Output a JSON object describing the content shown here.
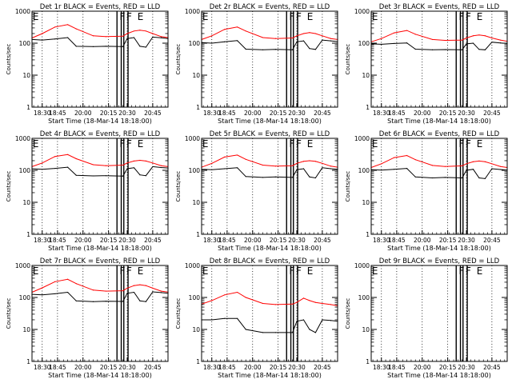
{
  "page": {
    "background": "#ffffff"
  },
  "colors": {
    "events": "#000000",
    "lld": "#ff0000",
    "axes": "#000000"
  },
  "chart_data": [
    {
      "type": "line",
      "title": "Det 1r BLACK = Events, RED = LLD",
      "xlabel": "Start Time (18-Mar-14 18:18:00)",
      "ylabel": "Counts/sec",
      "yscale": "log",
      "ylim": [
        1,
        1000
      ],
      "xlim": [
        "18:18",
        "20:58"
      ],
      "x_ticks": [
        "18:30",
        "18:45",
        "20:00",
        "20:15",
        "20:30",
        "20:45"
      ],
      "y_ticks": [
        "1",
        "10",
        "100",
        "1000"
      ],
      "grid": "vertical dotted",
      "flag_labels": [
        "E",
        "F",
        "F",
        "E"
      ],
      "x": [
        "18:18",
        "18:30",
        "18:45",
        "19:00",
        "19:10",
        "19:30",
        "19:45",
        "20:05",
        "20:10",
        "20:18",
        "20:25",
        "20:32",
        "20:40",
        "20:50",
        "20:58"
      ],
      "series": [
        {
          "name": "Events",
          "color": "#000000",
          "values": [
            130,
            125,
            135,
            150,
            80,
            78,
            80,
            78,
            140,
            150,
            80,
            75,
            155,
            148,
            140
          ]
        },
        {
          "name": "LLD",
          "color": "#ff0000",
          "values": [
            145,
            200,
            320,
            380,
            280,
            170,
            160,
            165,
            200,
            240,
            255,
            240,
            200,
            160,
            150
          ]
        }
      ]
    },
    {
      "type": "line",
      "title": "Det 2r BLACK = Events, RED = LLD",
      "xlabel": "Start Time (18-Mar-14 18:18:00)",
      "ylabel": "Counts/sec",
      "yscale": "log",
      "ylim": [
        1,
        1000
      ],
      "xlim": [
        "18:18",
        "20:58"
      ],
      "x_ticks": [
        "18:30",
        "18:45",
        "20:00",
        "20:15",
        "20:30",
        "20:45"
      ],
      "y_ticks": [
        "1",
        "10",
        "100",
        "1000"
      ],
      "grid": "vertical dotted",
      "flag_labels": [
        "E",
        "F",
        "F",
        "E"
      ],
      "x": [
        "18:18",
        "18:30",
        "18:45",
        "19:00",
        "19:10",
        "19:30",
        "19:45",
        "20:05",
        "20:10",
        "20:18",
        "20:25",
        "20:32",
        "20:40",
        "20:50",
        "20:58"
      ],
      "series": [
        {
          "name": "Events",
          "color": "#000000",
          "values": [
            105,
            100,
            110,
            120,
            65,
            62,
            64,
            62,
            110,
            118,
            68,
            64,
            125,
            118,
            112
          ]
        },
        {
          "name": "LLD",
          "color": "#ff0000",
          "values": [
            130,
            170,
            270,
            320,
            240,
            150,
            140,
            145,
            170,
            200,
            215,
            200,
            170,
            140,
            130
          ]
        }
      ]
    },
    {
      "type": "line",
      "title": "Det 3r BLACK = Events, RED = LLD",
      "xlabel": "Start Time (18-Mar-14 18:18:00)",
      "ylabel": "Counts/sec",
      "yscale": "log",
      "ylim": [
        1,
        1000
      ],
      "xlim": [
        "18:18",
        "20:58"
      ],
      "x_ticks": [
        "18:30",
        "18:45",
        "20:00",
        "20:15",
        "20:30",
        "20:45"
      ],
      "y_ticks": [
        "1",
        "10",
        "100",
        "1000"
      ],
      "grid": "vertical dotted",
      "flag_labels": [
        "E",
        "F",
        "F",
        "E"
      ],
      "x": [
        "18:18",
        "18:30",
        "18:45",
        "19:00",
        "19:10",
        "19:30",
        "19:45",
        "20:05",
        "20:10",
        "20:18",
        "20:25",
        "20:32",
        "20:40",
        "20:50",
        "20:58"
      ],
      "series": [
        {
          "name": "Events",
          "color": "#000000",
          "values": [
            95,
            92,
            98,
            102,
            65,
            62,
            63,
            62,
            95,
            100,
            64,
            62,
            108,
            102,
            98
          ]
        },
        {
          "name": "LLD",
          "color": "#ff0000",
          "values": [
            110,
            140,
            210,
            250,
            190,
            130,
            122,
            125,
            145,
            170,
            180,
            170,
            145,
            125,
            115
          ]
        }
      ]
    },
    {
      "type": "line",
      "title": "Det 4r BLACK = Events, RED = LLD",
      "xlabel": "Start Time (18-Mar-14 18:18:00)",
      "ylabel": "Counts/sec",
      "yscale": "log",
      "ylim": [
        1,
        1000
      ],
      "xlim": [
        "18:18",
        "20:58"
      ],
      "x_ticks": [
        "18:30",
        "18:45",
        "20:00",
        "20:15",
        "20:30",
        "20:45"
      ],
      "y_ticks": [
        "1",
        "10",
        "100",
        "1000"
      ],
      "grid": "vertical dotted",
      "flag_labels": [
        "E",
        "F",
        "F",
        "E"
      ],
      "x": [
        "18:18",
        "18:30",
        "18:45",
        "19:00",
        "19:10",
        "19:30",
        "19:45",
        "20:05",
        "20:10",
        "20:18",
        "20:25",
        "20:32",
        "20:40",
        "20:50",
        "20:58"
      ],
      "series": [
        {
          "name": "Events",
          "color": "#000000",
          "values": [
            112,
            108,
            115,
            125,
            70,
            67,
            68,
            66,
            112,
            120,
            72,
            68,
            130,
            122,
            118
          ]
        },
        {
          "name": "LLD",
          "color": "#ff0000",
          "values": [
            130,
            170,
            270,
            310,
            230,
            150,
            140,
            145,
            170,
            195,
            205,
            195,
            170,
            140,
            130
          ]
        }
      ]
    },
    {
      "type": "line",
      "title": "Det 5r BLACK = Events, RED = LLD",
      "xlabel": "Start Time (18-Mar-14 18:18:00)",
      "ylabel": "Counts/sec",
      "yscale": "log",
      "ylim": [
        1,
        1000
      ],
      "xlim": [
        "18:18",
        "20:58"
      ],
      "x_ticks": [
        "18:30",
        "18:45",
        "20:00",
        "20:15",
        "20:30",
        "20:45"
      ],
      "y_ticks": [
        "1",
        "10",
        "100",
        "1000"
      ],
      "grid": "vertical dotted",
      "flag_labels": [
        "E",
        "F",
        "F",
        "E"
      ],
      "x": [
        "18:18",
        "18:30",
        "18:45",
        "19:00",
        "19:10",
        "19:30",
        "19:45",
        "20:05",
        "20:10",
        "20:18",
        "20:25",
        "20:32",
        "20:40",
        "20:50",
        "20:58"
      ],
      "series": [
        {
          "name": "Events",
          "color": "#000000",
          "values": [
            108,
            105,
            112,
            120,
            64,
            60,
            62,
            60,
            105,
            112,
            62,
            58,
            120,
            112,
            108
          ]
        },
        {
          "name": "LLD",
          "color": "#ff0000",
          "values": [
            125,
            165,
            260,
            300,
            220,
            145,
            135,
            140,
            165,
            190,
            200,
            190,
            165,
            135,
            125
          ]
        }
      ]
    },
    {
      "type": "line",
      "title": "Det 6r BLACK = Events, RED = LLD",
      "xlabel": "Start Time (18-Mar-14 18:18:00)",
      "ylabel": "Counts/sec",
      "yscale": "log",
      "ylim": [
        1,
        1000
      ],
      "xlim": [
        "18:18",
        "20:58"
      ],
      "x_ticks": [
        "18:30",
        "18:45",
        "20:00",
        "20:15",
        "20:30",
        "20:45"
      ],
      "y_ticks": [
        "1",
        "10",
        "100",
        "1000"
      ],
      "grid": "vertical dotted",
      "flag_labels": [
        "E",
        "F",
        "F",
        "E"
      ],
      "x": [
        "18:18",
        "18:30",
        "18:45",
        "19:00",
        "19:10",
        "19:30",
        "19:45",
        "20:05",
        "20:10",
        "20:18",
        "20:25",
        "20:32",
        "20:40",
        "20:50",
        "20:58"
      ],
      "series": [
        {
          "name": "Events",
          "color": "#000000",
          "values": [
            105,
            102,
            108,
            115,
            62,
            58,
            60,
            58,
            100,
            108,
            58,
            55,
            112,
            106,
            102
          ]
        },
        {
          "name": "LLD",
          "color": "#ff0000",
          "values": [
            122,
            160,
            250,
            290,
            215,
            142,
            132,
            138,
            160,
            185,
            195,
            185,
            160,
            132,
            122
          ]
        }
      ]
    },
    {
      "type": "line",
      "title": "Det 7r BLACK = Events, RED = LLD",
      "xlabel": "Start Time (18-Mar-14 18:18:00)",
      "ylabel": "Counts/sec",
      "yscale": "log",
      "ylim": [
        1,
        1000
      ],
      "xlim": [
        "18:18",
        "20:58"
      ],
      "x_ticks": [
        "18:30",
        "18:45",
        "20:00",
        "20:15",
        "20:30",
        "20:45"
      ],
      "y_ticks": [
        "1",
        "10",
        "100",
        "1000"
      ],
      "grid": "vertical dotted",
      "flag_labels": [
        "E",
        "F",
        "F",
        "E"
      ],
      "x": [
        "18:18",
        "18:30",
        "18:45",
        "19:00",
        "19:10",
        "19:30",
        "19:45",
        "20:05",
        "20:10",
        "20:18",
        "20:25",
        "20:32",
        "20:40",
        "20:50",
        "20:58"
      ],
      "series": [
        {
          "name": "Events",
          "color": "#000000",
          "values": [
            125,
            120,
            130,
            145,
            78,
            74,
            76,
            75,
            135,
            145,
            78,
            74,
            150,
            142,
            135
          ]
        },
        {
          "name": "LLD",
          "color": "#ff0000",
          "values": [
            145,
            200,
            310,
            370,
            270,
            170,
            158,
            162,
            195,
            235,
            250,
            235,
            195,
            158,
            148
          ]
        }
      ]
    },
    {
      "type": "line",
      "title": "Det 8r BLACK = Events, RED = LLD",
      "xlabel": "Start Time (18-Mar-14 18:18:00)",
      "ylabel": "Counts/sec",
      "yscale": "log",
      "ylim": [
        1,
        1000
      ],
      "xlim": [
        "18:18",
        "20:58"
      ],
      "x_ticks": [
        "18:30",
        "18:45",
        "20:00",
        "20:15",
        "20:30",
        "20:45"
      ],
      "y_ticks": [
        "1",
        "10",
        "100",
        "1000"
      ],
      "grid": "vertical dotted",
      "flag_labels": [
        "E",
        "F",
        "F",
        "E"
      ],
      "x": [
        "18:18",
        "18:30",
        "18:45",
        "19:00",
        "19:10",
        "19:30",
        "19:45",
        "20:05",
        "20:10",
        "20:18",
        "20:25",
        "20:32",
        "20:40",
        "20:50",
        "20:58"
      ],
      "series": [
        {
          "name": "Events",
          "color": "#000000",
          "values": [
            20,
            20,
            22,
            22,
            10,
            8,
            8,
            8,
            18,
            20,
            10,
            8,
            20,
            19,
            18
          ]
        },
        {
          "name": "LLD",
          "color": "#ff0000",
          "values": [
            62,
            80,
            120,
            145,
            100,
            65,
            60,
            62,
            70,
            95,
            80,
            70,
            65,
            60,
            55
          ]
        }
      ]
    },
    {
      "type": "line",
      "title": "Det 9r BLACK = Events, RED = LLD",
      "xlabel": "Start Time (18-Mar-14 18:18:00)",
      "ylabel": "Counts/sec",
      "yscale": "log",
      "ylim": [
        1,
        1000
      ],
      "xlim": [
        "18:18",
        "20:58"
      ],
      "x_ticks": [
        "18:30",
        "18:45",
        "20:00",
        "20:15",
        "20:30",
        "20:45"
      ],
      "y_ticks": [
        "1",
        "10",
        "100",
        "1000"
      ],
      "grid": "vertical dotted",
      "flag_labels": [
        "E",
        "F",
        "F",
        "E"
      ],
      "x": [],
      "series": []
    }
  ]
}
